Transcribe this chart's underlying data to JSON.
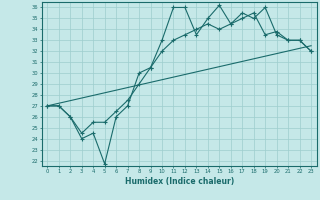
{
  "title": "",
  "xlabel": "Humidex (Indice chaleur)",
  "ylabel": "",
  "bg_color": "#c5e8e8",
  "line_color": "#1a6b6b",
  "grid_color": "#9ecece",
  "xlim": [
    -0.5,
    23.5
  ],
  "ylim": [
    21.5,
    36.5
  ],
  "yticks": [
    22,
    23,
    24,
    25,
    26,
    27,
    28,
    29,
    30,
    31,
    32,
    33,
    34,
    35,
    36
  ],
  "xticks": [
    0,
    1,
    2,
    3,
    4,
    5,
    6,
    7,
    8,
    9,
    10,
    11,
    12,
    13,
    14,
    15,
    16,
    17,
    18,
    19,
    20,
    21,
    22,
    23
  ],
  "line1_x": [
    0,
    1,
    2,
    3,
    4,
    5,
    6,
    7,
    8,
    9,
    10,
    11,
    12,
    13,
    14,
    15,
    16,
    17,
    18,
    19,
    20,
    21,
    22,
    23
  ],
  "line1_y": [
    27.0,
    27.0,
    26.0,
    24.0,
    24.5,
    21.7,
    26.0,
    27.0,
    30.0,
    30.5,
    33.0,
    36.0,
    36.0,
    33.5,
    35.0,
    36.2,
    34.5,
    35.5,
    35.0,
    36.0,
    33.5,
    33.0,
    33.0,
    32.0
  ],
  "line2_x": [
    0,
    1,
    2,
    3,
    4,
    5,
    6,
    7,
    8,
    9,
    10,
    11,
    12,
    13,
    14,
    15,
    16,
    17,
    18,
    19,
    20,
    21,
    22,
    23
  ],
  "line2_y": [
    27.0,
    27.0,
    26.0,
    24.5,
    25.5,
    25.5,
    26.5,
    27.5,
    29.0,
    30.5,
    32.0,
    33.0,
    33.5,
    34.0,
    34.5,
    34.0,
    34.5,
    35.0,
    35.5,
    33.5,
    33.8,
    33.0,
    33.0,
    32.0
  ],
  "line3_x": [
    0,
    23
  ],
  "line3_y": [
    27.0,
    32.5
  ]
}
